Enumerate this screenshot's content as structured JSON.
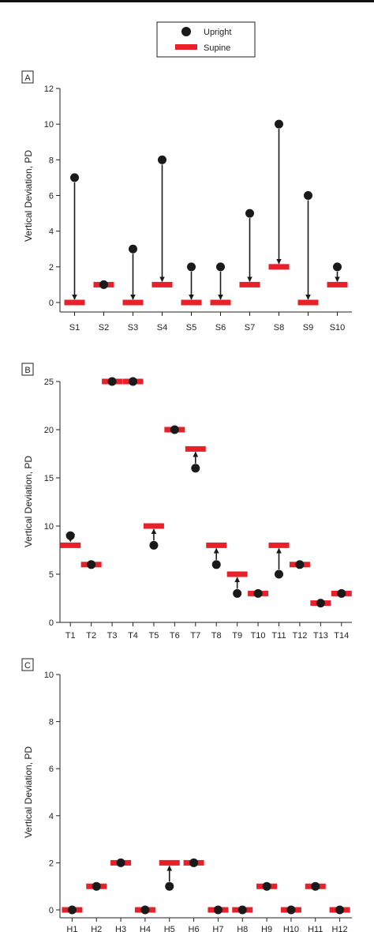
{
  "legend": {
    "items": [
      {
        "label": "Upright",
        "marker": "circle"
      },
      {
        "label": "Supine",
        "marker": "bar"
      }
    ]
  },
  "colors": {
    "upright": "#1a1a1a",
    "supine": "#e8202a",
    "axis": "#222222"
  },
  "chart_data": [
    {
      "type": "scatter",
      "panel_label": "A",
      "ylabel": "Vertical Deviation, PD",
      "xlabel": "",
      "ylim": [
        0,
        12
      ],
      "yticks": [
        0,
        2,
        4,
        6,
        8,
        10,
        12
      ],
      "categories": [
        "S1",
        "S2",
        "S3",
        "S4",
        "S5",
        "S6",
        "S7",
        "S8",
        "S9",
        "S10"
      ],
      "series": [
        {
          "name": "Upright",
          "values": [
            7,
            1,
            3,
            8,
            2,
            2,
            5,
            10,
            6,
            2
          ]
        },
        {
          "name": "Supine",
          "values": [
            0,
            1,
            0,
            1,
            0,
            0,
            1,
            2,
            0,
            1
          ]
        }
      ],
      "grid": false
    },
    {
      "type": "scatter",
      "panel_label": "B",
      "ylabel": "Vertical Deviation, PD",
      "xlabel": "",
      "ylim": [
        0,
        25
      ],
      "yticks": [
        0,
        5,
        10,
        15,
        20,
        25
      ],
      "categories": [
        "T1",
        "T2",
        "T3",
        "T4",
        "T5",
        "T6",
        "T7",
        "T8",
        "T9",
        "T10",
        "T11",
        "T12",
        "T13",
        "T14"
      ],
      "series": [
        {
          "name": "Upright",
          "values": [
            9,
            6,
            25,
            25,
            8,
            20,
            16,
            6,
            3,
            3,
            5,
            6,
            2,
            3
          ]
        },
        {
          "name": "Supine",
          "values": [
            8,
            6,
            25,
            25,
            10,
            20,
            18,
            8,
            5,
            3,
            8,
            6,
            2,
            3
          ]
        }
      ],
      "grid": false
    },
    {
      "type": "scatter",
      "panel_label": "C",
      "ylabel": "Vertical Deviation, PD",
      "xlabel": "",
      "ylim": [
        0,
        10
      ],
      "yticks": [
        0,
        2,
        4,
        6,
        8,
        10
      ],
      "categories": [
        "H1",
        "H2",
        "H3",
        "H4",
        "H5",
        "H6",
        "H7",
        "H8",
        "H9",
        "H10",
        "H11",
        "H12"
      ],
      "series": [
        {
          "name": "Upright",
          "values": [
            0,
            1,
            2,
            0,
            1,
            2,
            0,
            0,
            1,
            0,
            1,
            0
          ]
        },
        {
          "name": "Supine",
          "values": [
            0,
            1,
            2,
            0,
            2,
            2,
            0,
            0,
            1,
            0,
            1,
            0
          ]
        }
      ],
      "grid": false
    }
  ]
}
